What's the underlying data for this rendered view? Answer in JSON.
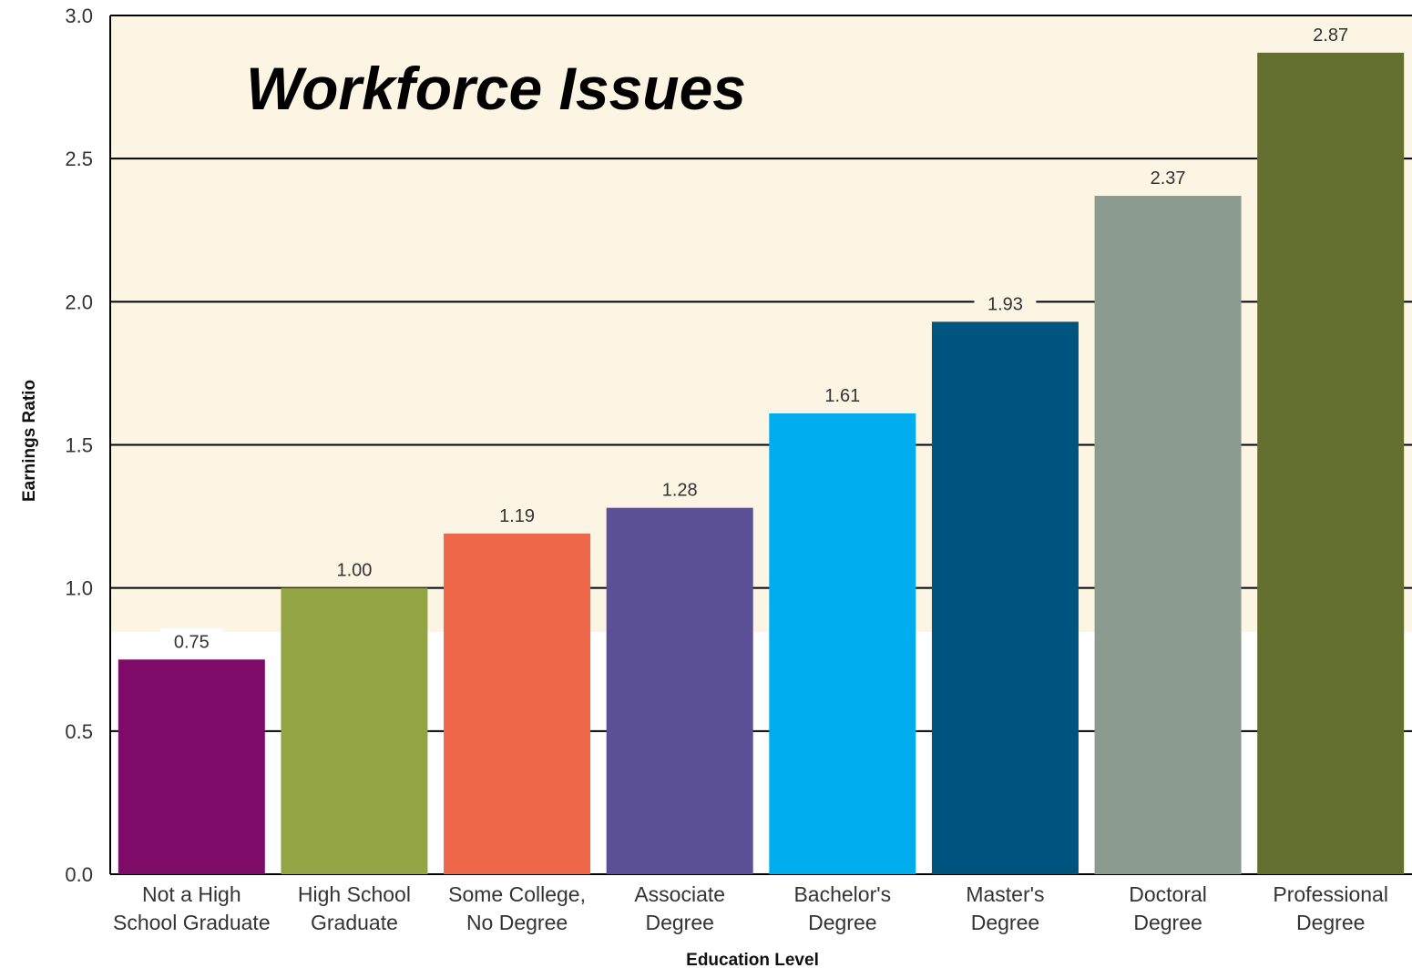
{
  "headline": "Workforce Issues",
  "colors": {
    "panel_background": "#fdf5e4",
    "grid": "#000000"
  },
  "chart_data": {
    "type": "bar",
    "xlabel": "Education Level",
    "ylabel": "Earnings Ratio",
    "ylim": [
      0,
      3.0
    ],
    "yticks": [
      "0.0",
      "0.5",
      "1.0",
      "1.5",
      "2.0",
      "2.5",
      "3.0"
    ],
    "grid": true,
    "categories": [
      [
        "Not a High",
        "School Graduate"
      ],
      [
        "High School",
        "Graduate"
      ],
      [
        "Some College,",
        "No Degree"
      ],
      [
        "Associate",
        "Degree"
      ],
      [
        "Bachelor's",
        "Degree"
      ],
      [
        "Master's",
        "Degree"
      ],
      [
        "Doctoral",
        "Degree"
      ],
      [
        "Professional",
        "Degree"
      ]
    ],
    "values": [
      0.75,
      1.0,
      1.19,
      1.28,
      1.61,
      1.93,
      2.37,
      2.87
    ],
    "value_labels": [
      "0.75",
      "1.00",
      "1.19",
      "1.28",
      "1.61",
      "1.93",
      "2.37",
      "2.87"
    ],
    "bar_colors": [
      "#7d0b67",
      "#93a444",
      "#f0684a",
      "#5b4f96",
      "#00aeef",
      "#005580",
      "#8c9b90",
      "#636f2e"
    ]
  }
}
